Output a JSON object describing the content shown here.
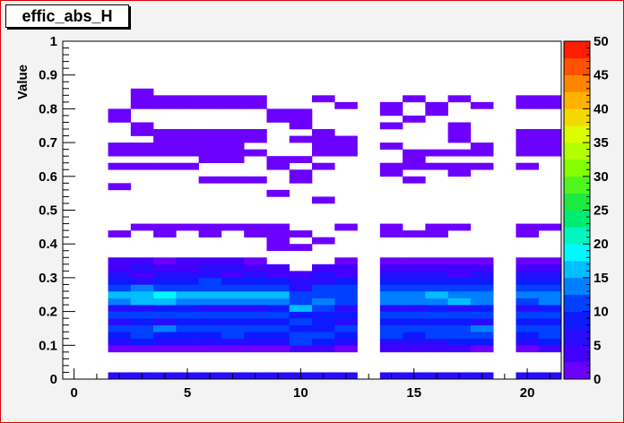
{
  "title": "effic_abs_H",
  "colors": {
    "frame": "#e00000",
    "canvas": "#f3f3f3",
    "plot_bg": "#ffffff",
    "palette_from": "#8000ff",
    "palette_to": "#ff0000"
  },
  "chart_data": {
    "type": "heatmap",
    "title": "effic_abs_H",
    "xlabel": "",
    "ylabel": "Value",
    "xlim": [
      -0.5,
      21.5
    ],
    "ylim": [
      0,
      1
    ],
    "x_ticks": [
      "0",
      "5",
      "10",
      "15",
      "20"
    ],
    "y_ticks": [
      "0",
      "0.1",
      "0.2",
      "0.3",
      "0.4",
      "0.5",
      "0.6",
      "0.7",
      "0.8",
      "0.9",
      "1"
    ],
    "z_ticks": [
      "0",
      "5",
      "10",
      "15",
      "20",
      "25",
      "30",
      "35",
      "40",
      "45",
      "50"
    ],
    "zlim": [
      0,
      50
    ],
    "x_bin_width": 1,
    "y_bin_width": 0.02,
    "x_bins": [
      2,
      3,
      4,
      5,
      6,
      7,
      8,
      9,
      10,
      11,
      12,
      14,
      15,
      16,
      17,
      18,
      20,
      21
    ],
    "y_bins_lower": [
      0.0,
      0.08,
      0.1,
      0.12,
      0.14,
      0.16,
      0.18,
      0.2,
      0.22,
      0.24,
      0.26,
      0.28,
      0.3,
      0.32,
      0.34,
      0.38,
      0.4,
      0.42,
      0.44,
      0.52,
      0.54,
      0.56,
      0.58,
      0.6,
      0.62,
      0.64,
      0.66,
      0.68,
      0.7,
      0.72,
      0.74,
      0.76,
      0.78,
      0.8,
      0.82,
      0.84
    ],
    "z": [
      [
        6,
        6,
        6,
        6,
        6,
        6,
        6,
        6,
        6,
        6,
        6,
        6,
        6,
        6,
        6,
        6,
        6,
        6
      ],
      [
        2,
        2,
        2,
        2,
        2,
        2,
        2,
        2,
        4,
        4,
        2,
        4,
        4,
        4,
        4,
        2,
        2,
        4
      ],
      [
        6,
        8,
        6,
        6,
        6,
        6,
        6,
        6,
        10,
        8,
        6,
        6,
        6,
        6,
        8,
        8,
        6,
        8
      ],
      [
        8,
        10,
        8,
        8,
        8,
        10,
        8,
        8,
        12,
        10,
        8,
        10,
        8,
        10,
        12,
        10,
        8,
        10
      ],
      [
        12,
        12,
        14,
        12,
        12,
        12,
        12,
        12,
        8,
        8,
        10,
        12,
        12,
        12,
        12,
        14,
        12,
        12
      ],
      [
        6,
        8,
        6,
        8,
        8,
        8,
        8,
        8,
        10,
        8,
        6,
        8,
        8,
        8,
        8,
        6,
        8,
        8
      ],
      [
        10,
        10,
        12,
        12,
        12,
        10,
        10,
        12,
        8,
        8,
        8,
        10,
        10,
        10,
        10,
        10,
        10,
        10
      ],
      [
        6,
        6,
        8,
        8,
        6,
        6,
        6,
        8,
        16,
        10,
        6,
        6,
        6,
        8,
        6,
        8,
        6,
        8
      ],
      [
        14,
        16,
        16,
        14,
        14,
        14,
        14,
        14,
        10,
        14,
        12,
        14,
        14,
        14,
        16,
        14,
        12,
        14
      ],
      [
        16,
        16,
        18,
        16,
        16,
        16,
        16,
        16,
        10,
        12,
        12,
        14,
        14,
        16,
        14,
        14,
        14,
        14
      ],
      [
        12,
        14,
        12,
        12,
        12,
        12,
        12,
        12,
        6,
        10,
        12,
        12,
        12,
        12,
        12,
        12,
        12,
        12
      ],
      [
        8,
        6,
        8,
        8,
        10,
        8,
        8,
        8,
        6,
        6,
        8,
        8,
        8,
        8,
        8,
        8,
        8,
        8
      ],
      [
        6,
        4,
        6,
        6,
        6,
        4,
        6,
        4,
        4,
        6,
        4,
        6,
        6,
        6,
        4,
        6,
        6,
        6
      ],
      [
        4,
        6,
        4,
        4,
        6,
        6,
        4,
        4,
        0,
        4,
        4,
        4,
        4,
        4,
        4,
        4,
        4,
        4
      ],
      [
        4,
        4,
        2,
        4,
        4,
        4,
        2,
        0,
        0,
        0,
        2,
        2,
        2,
        2,
        2,
        2,
        2,
        2
      ],
      [
        0,
        0,
        0,
        0,
        0,
        0,
        0,
        1,
        1,
        0,
        0,
        0,
        0,
        0,
        0,
        0,
        0,
        0
      ],
      [
        0,
        0,
        0,
        0,
        0,
        0,
        0,
        1,
        0,
        1,
        0,
        0,
        0,
        0,
        0,
        0,
        0,
        0
      ],
      [
        1,
        0,
        1,
        0,
        1,
        0,
        1,
        1,
        1,
        0,
        0,
        1,
        1,
        1,
        0,
        0,
        1,
        0
      ],
      [
        0,
        1,
        1,
        1,
        1,
        1,
        1,
        1,
        0,
        0,
        1,
        1,
        0,
        1,
        1,
        0,
        1,
        1
      ],
      [
        0,
        0,
        0,
        0,
        0,
        0,
        0,
        0,
        0,
        1,
        0,
        0,
        0,
        0,
        0,
        0,
        0,
        0
      ],
      [
        0,
        0,
        0,
        0,
        0,
        0,
        0,
        1,
        0,
        0,
        0,
        0,
        0,
        0,
        0,
        0,
        0,
        0
      ],
      [
        1,
        0,
        0,
        0,
        0,
        0,
        0,
        0,
        0,
        0,
        0,
        0,
        0,
        0,
        0,
        0,
        0,
        0
      ],
      [
        0,
        0,
        0,
        0,
        1,
        1,
        1,
        0,
        1,
        0,
        0,
        0,
        1,
        0,
        0,
        0,
        0,
        0
      ],
      [
        0,
        0,
        0,
        0,
        0,
        0,
        0,
        0,
        1,
        0,
        0,
        1,
        0,
        0,
        1,
        0,
        0,
        0
      ],
      [
        1,
        1,
        1,
        1,
        0,
        0,
        0,
        1,
        0,
        1,
        0,
        1,
        1,
        1,
        1,
        1,
        1,
        0
      ],
      [
        0,
        0,
        0,
        0,
        1,
        1,
        0,
        1,
        1,
        0,
        0,
        0,
        1,
        0,
        0,
        0,
        0,
        0
      ],
      [
        1,
        1,
        1,
        1,
        1,
        1,
        1,
        0,
        0,
        1,
        1,
        0,
        1,
        1,
        1,
        1,
        1,
        1
      ],
      [
        1,
        1,
        1,
        1,
        1,
        1,
        0,
        0,
        0,
        1,
        1,
        1,
        0,
        0,
        0,
        1,
        1,
        1
      ],
      [
        0,
        0,
        1,
        1,
        1,
        1,
        1,
        0,
        1,
        1,
        1,
        0,
        0,
        0,
        1,
        0,
        1,
        1
      ],
      [
        0,
        1,
        1,
        1,
        1,
        1,
        1,
        0,
        0,
        1,
        0,
        0,
        0,
        0,
        1,
        0,
        1,
        1
      ],
      [
        0,
        1,
        0,
        0,
        0,
        0,
        0,
        0,
        1,
        0,
        0,
        1,
        0,
        0,
        1,
        0,
        0,
        0
      ],
      [
        1,
        0,
        0,
        0,
        0,
        0,
        0,
        1,
        1,
        0,
        0,
        0,
        1,
        0,
        0,
        0,
        0,
        0
      ],
      [
        1,
        0,
        0,
        0,
        0,
        0,
        0,
        1,
        1,
        0,
        0,
        1,
        0,
        1,
        0,
        0,
        0,
        0
      ],
      [
        0,
        1,
        1,
        1,
        1,
        1,
        1,
        0,
        0,
        0,
        1,
        1,
        0,
        1,
        0,
        1,
        1,
        1
      ],
      [
        0,
        1,
        1,
        1,
        1,
        1,
        1,
        0,
        0,
        1,
        0,
        0,
        1,
        0,
        1,
        0,
        1,
        1
      ],
      [
        0,
        1,
        0,
        0,
        0,
        0,
        0,
        0,
        0,
        0,
        0,
        0,
        0,
        0,
        0,
        0,
        0,
        0
      ]
    ]
  }
}
